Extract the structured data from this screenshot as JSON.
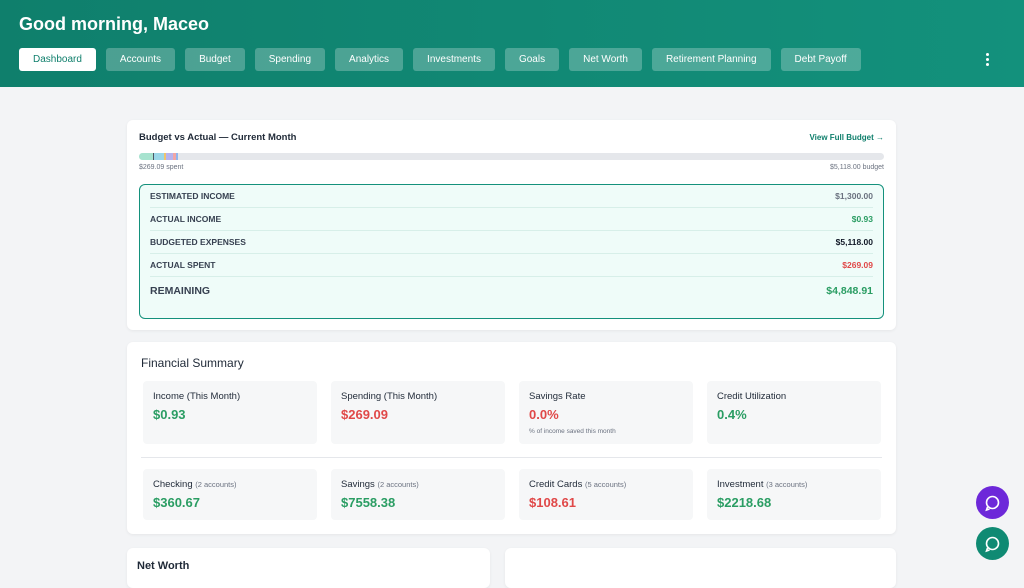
{
  "header": {
    "greeting": "Good morning, Maceo",
    "nav": [
      "Dashboard",
      "Accounts",
      "Budget",
      "Spending",
      "Analytics",
      "Investments",
      "Goals",
      "Net Worth",
      "Retirement Planning",
      "Debt Payoff"
    ],
    "active": 0
  },
  "budget": {
    "title": "Budget vs Actual — Current Month",
    "link": "View Full Budget →",
    "spent_label": "$269.09 spent",
    "budget_label": "$5,118.00 budget",
    "rows": [
      {
        "label": "ESTIMATED INCOME",
        "value": "$1,300.00",
        "tone": "muted"
      },
      {
        "label": "ACTUAL INCOME",
        "value": "$0.93",
        "tone": "green"
      },
      {
        "label": "BUDGETED EXPENSES",
        "value": "$5,118.00",
        "tone": "dark"
      },
      {
        "label": "ACTUAL SPENT",
        "value": "$269.09",
        "tone": "red"
      },
      {
        "label": "REMAINING",
        "value": "$4,848.91",
        "tone": "green"
      }
    ]
  },
  "summary": {
    "title": "Financial Summary",
    "metrics": [
      {
        "label": "Income (This Month)",
        "value": "$0.93",
        "tone": "green"
      },
      {
        "label": "Spending (This Month)",
        "value": "$269.09",
        "tone": "red"
      },
      {
        "label": "Savings Rate",
        "value": "0.0%",
        "tone": "red",
        "note": "% of income saved this month"
      },
      {
        "label": "Credit Utilization",
        "value": "0.4%",
        "tone": "green"
      }
    ],
    "accounts": [
      {
        "label": "Checking",
        "count": "(2 accounts)",
        "value": "$360.67",
        "tone": "green"
      },
      {
        "label": "Savings",
        "count": "(2 accounts)",
        "value": "$7558.38",
        "tone": "green"
      },
      {
        "label": "Credit Cards",
        "count": "(5 accounts)",
        "value": "$108.61",
        "tone": "red"
      },
      {
        "label": "Investment",
        "count": "(3 accounts)",
        "value": "$2218.68",
        "tone": "green"
      }
    ]
  },
  "net_worth_title": "Net Worth"
}
